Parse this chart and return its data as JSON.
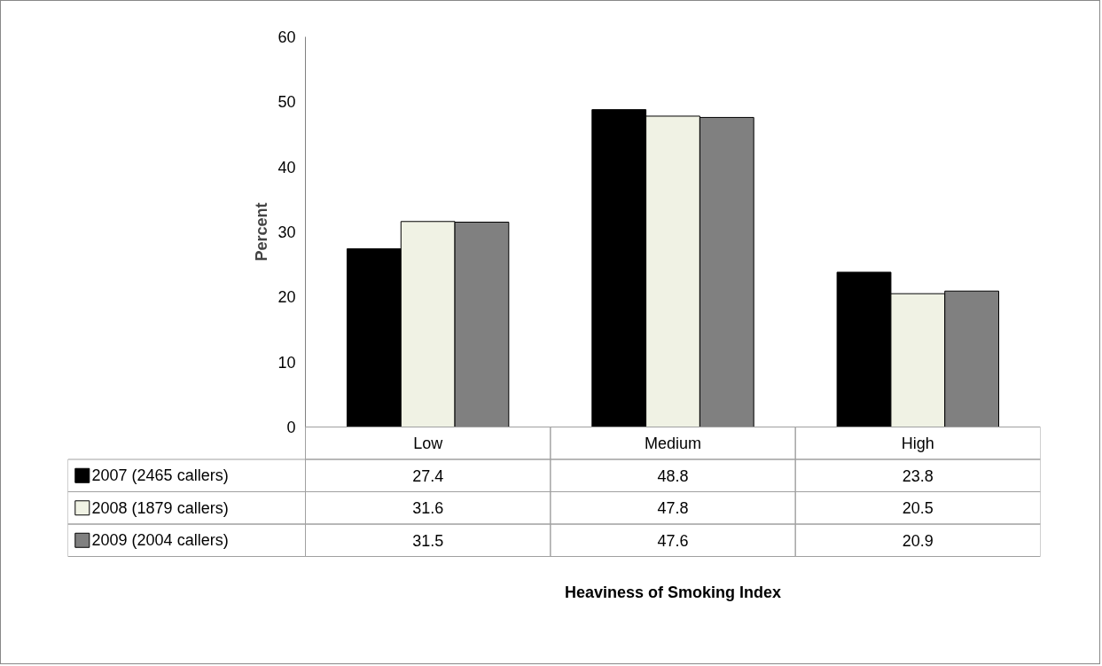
{
  "chart_data": {
    "type": "bar",
    "annotations": [
      "Heaviness of Smoking Index"
    ],
    "ylabel": "Percent",
    "categories": [
      "Low",
      "Medium",
      "High"
    ],
    "series": [
      {
        "name": "2007 (2465 callers)",
        "color": "#000000",
        "values": [
          27.4,
          48.8,
          23.8
        ]
      },
      {
        "name": "2008 (1879 callers)",
        "color": "#f0f2e4",
        "values": [
          31.6,
          47.8,
          20.5
        ]
      },
      {
        "name": "2009 (2004 callers)",
        "color": "#808080",
        "values": [
          31.5,
          47.6,
          20.9
        ]
      }
    ],
    "ylim": [
      0,
      60
    ],
    "yticks": [
      0,
      10,
      20,
      30,
      40,
      50,
      60
    ],
    "grid": false,
    "legend": "bottom left",
    "data_labels": true
  }
}
